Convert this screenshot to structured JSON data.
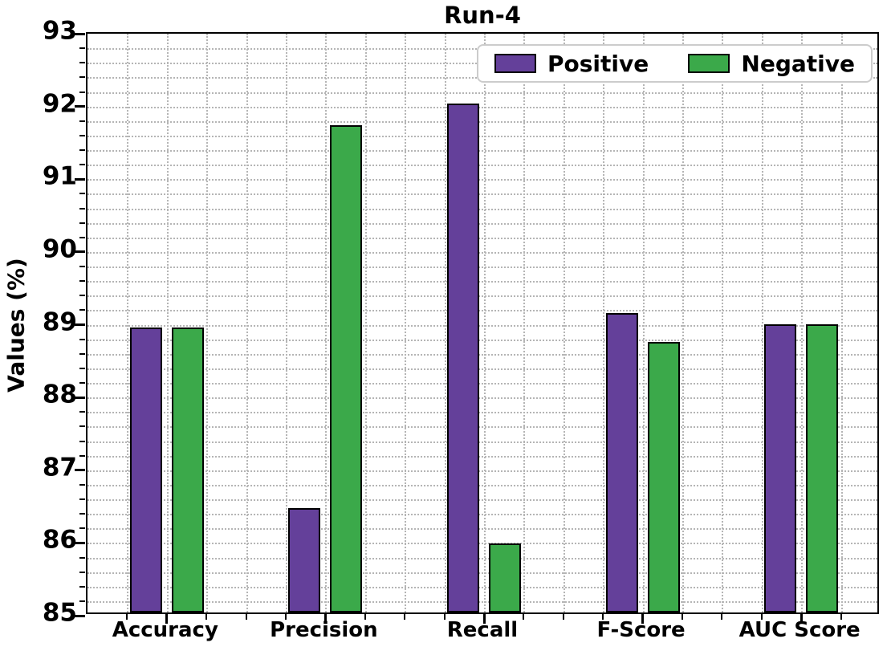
{
  "chart_data": {
    "type": "bar",
    "title": "Run-4",
    "ylabel": "Values (%)",
    "xlabel": "",
    "categories": [
      "Accuracy",
      "Precision",
      "Recall",
      "F-Score",
      "AUC Score"
    ],
    "series": [
      {
        "name": "Positive",
        "color": "#64409a",
        "values": [
          88.92,
          86.44,
          92.0,
          89.12,
          88.96
        ]
      },
      {
        "name": "Negative",
        "color": "#3ba94a",
        "values": [
          88.92,
          91.7,
          85.95,
          88.72,
          88.96
        ]
      }
    ],
    "ylim": [
      85,
      93
    ],
    "ymajor_step": 1,
    "yminor_step": 0.2,
    "ytick_labels": [
      "85",
      "86",
      "87",
      "88",
      "89",
      "90",
      "91",
      "92",
      "93"
    ],
    "grid": {
      "style": "dotted",
      "color": "#b5b5b5",
      "which": "major+minor"
    },
    "bar_edge_color": "#000000",
    "legend": {
      "labels": [
        "Positive",
        "Negative"
      ],
      "position": "upper-right-inside"
    }
  }
}
